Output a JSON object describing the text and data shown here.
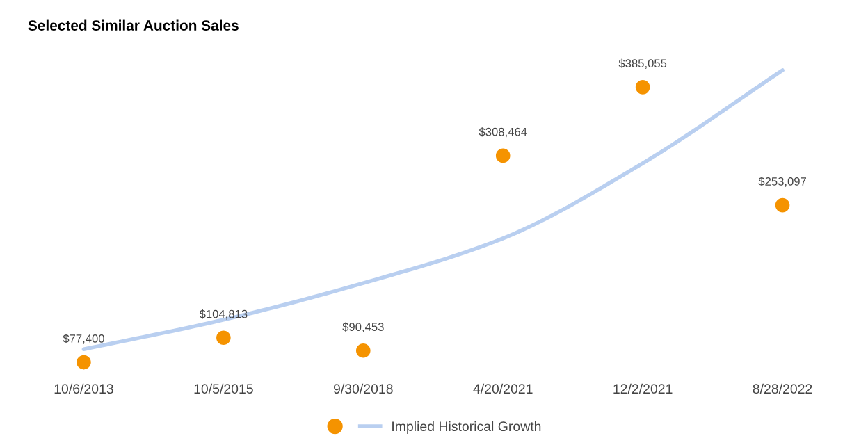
{
  "chart_data": {
    "type": "scatter",
    "title": "Selected Similar Auction Sales",
    "categories": [
      "10/6/2013",
      "10/5/2015",
      "9/30/2018",
      "4/20/2021",
      "12/2/2021",
      "8/28/2022"
    ],
    "series": [
      {
        "color": "#f59300",
        "values": [
          77400,
          104813,
          90453,
          308464,
          385055,
          253097
        ],
        "value_labels": [
          "$77,400",
          "$104,813",
          "$90,453",
          "$308,464",
          "$385,055",
          "$253,097"
        ],
        "marker": "circle"
      },
      {
        "type": "line",
        "name": "Implied Historical Growth",
        "color": "#b9cff0",
        "values": [
          92000,
          125000,
          166000,
          216000,
          300000,
          404000
        ],
        "marker": "none",
        "line_style": "solid"
      }
    ],
    "tick_labels": "x",
    "grid": false,
    "legend": "bottom"
  }
}
